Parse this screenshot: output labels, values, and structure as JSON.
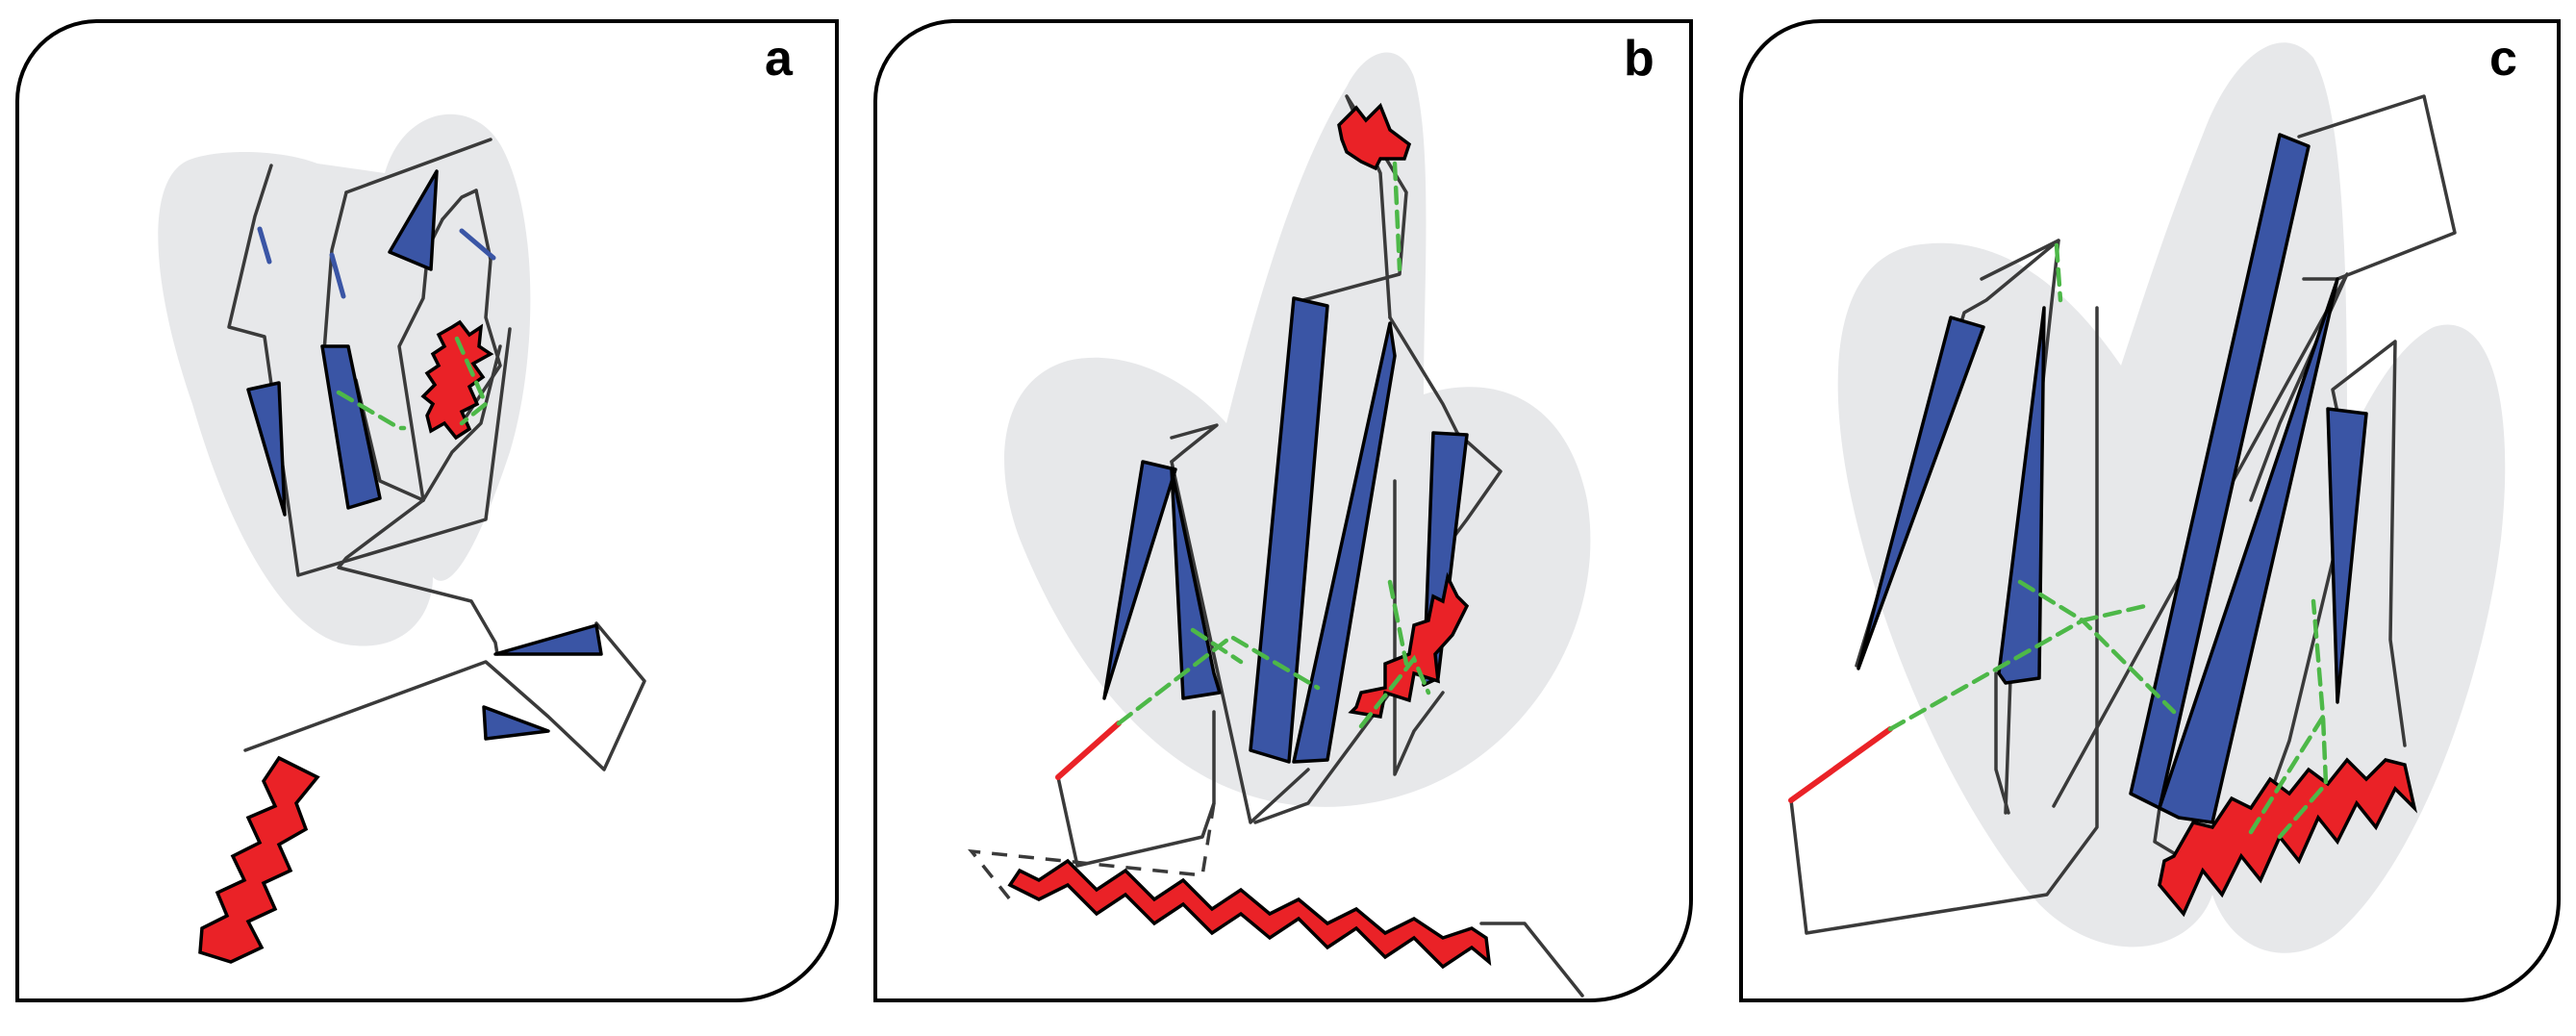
{
  "panels": [
    {
      "id": "a",
      "label": "a"
    },
    {
      "id": "b",
      "label": "b"
    },
    {
      "id": "c",
      "label": "c"
    }
  ],
  "colors": {
    "strand": "#3a55a5",
    "helix": "#ea2227",
    "hbond": "#4db848",
    "background_blob": "#e7e8ea",
    "coil": "#3a3a3a"
  }
}
